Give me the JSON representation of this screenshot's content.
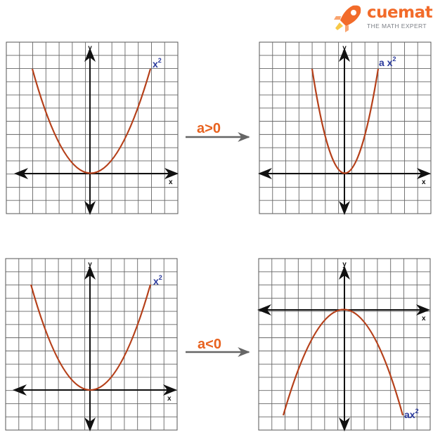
{
  "brand": {
    "name": "cuemath",
    "tagline": "THE MATH EXPERT",
    "accent": "#f26b2a"
  },
  "panels": [
    {
      "label": "x",
      "superscript": "2",
      "x_axis": "x",
      "y_axis": "y",
      "opens": "up",
      "width": "standard"
    },
    {
      "label": "a x",
      "superscript": "2",
      "x_axis": "x",
      "y_axis": "y",
      "opens": "up",
      "width": "narrow"
    },
    {
      "label": "x",
      "superscript": "2",
      "x_axis": "x",
      "y_axis": "y",
      "opens": "up",
      "width": "standard"
    },
    {
      "label": "ax",
      "superscript": "2",
      "x_axis": "x",
      "y_axis": "y",
      "opens": "down",
      "width": "wide"
    }
  ],
  "transitions": [
    {
      "condition": "a>0"
    },
    {
      "condition": "a<0"
    }
  ],
  "colors": {
    "curve": "#b5401a",
    "axis": "#111111",
    "grid": "#555555",
    "label": "#2a3a9c",
    "condition": "#e8621f",
    "arrow": "#666666"
  }
}
